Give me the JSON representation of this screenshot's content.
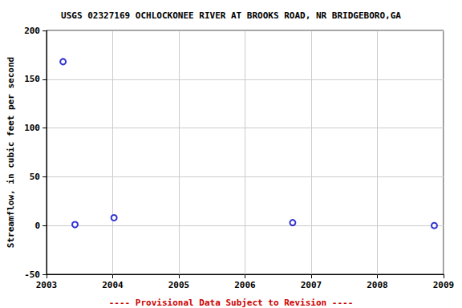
{
  "chart_data": {
    "type": "scatter",
    "title": "USGS 02327169 OCHLOCKONEE RIVER AT BROOKS ROAD, NR BRIDGEBORO,GA",
    "y_label": "Streamflow, in cubic feet per second",
    "caption": "---- Provisional Data Subject to Revision ----",
    "x": [
      2003.25,
      2003.43,
      2004.02,
      2006.72,
      2008.86
    ],
    "values": [
      168,
      1,
      8,
      3,
      0
    ],
    "color": "#0000cc",
    "marker": "open_circle",
    "xlim": [
      2003,
      2009
    ],
    "xticks": [
      2003,
      2004,
      2005,
      2006,
      2007,
      2008,
      2009
    ],
    "ylim": [
      -50,
      200
    ],
    "yticks": [
      -50,
      0,
      50,
      100,
      150,
      200
    ],
    "grid": true
  }
}
